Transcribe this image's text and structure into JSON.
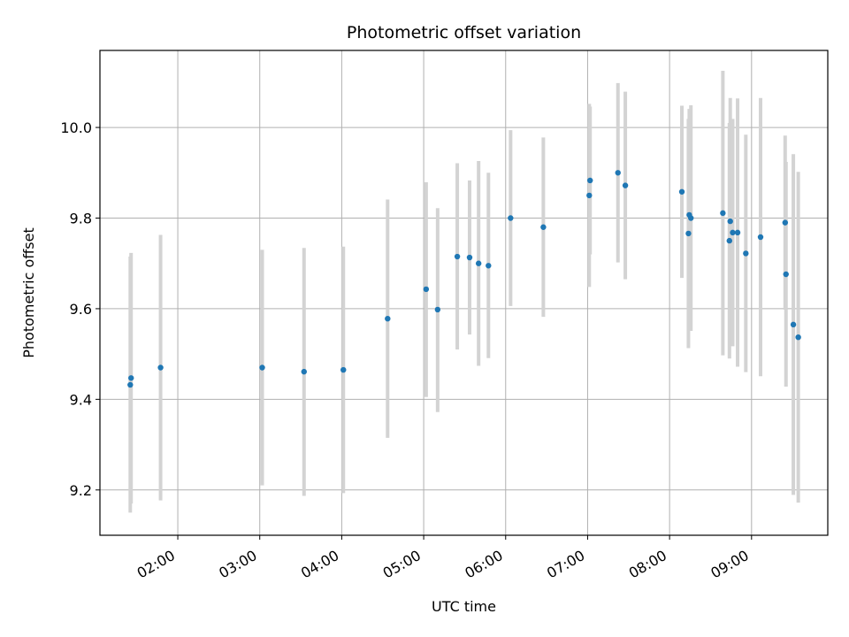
{
  "chart_data": {
    "type": "scatter",
    "title": "Photometric offset variation",
    "xlabel": "UTC time",
    "ylabel": "Photometric offset",
    "x_unit": "hours UTC",
    "xlim": [
      1.05,
      9.93
    ],
    "ylim": [
      9.1,
      10.17
    ],
    "xticks": [
      {
        "value": 2,
        "label": "02:00"
      },
      {
        "value": 3,
        "label": "03:00"
      },
      {
        "value": 4,
        "label": "04:00"
      },
      {
        "value": 5,
        "label": "05:00"
      },
      {
        "value": 6,
        "label": "06:00"
      },
      {
        "value": 7,
        "label": "07:00"
      },
      {
        "value": 8,
        "label": "08:00"
      },
      {
        "value": 9,
        "label": "09:00"
      }
    ],
    "yticks": [
      {
        "value": 9.2,
        "label": "9.2"
      },
      {
        "value": 9.4,
        "label": "9.4"
      },
      {
        "value": 9.6,
        "label": "9.6"
      },
      {
        "value": 9.8,
        "label": "9.8"
      },
      {
        "value": 10.0,
        "label": "10.0"
      }
    ],
    "grid": true,
    "marker_color": "#1f77b4",
    "errorbar_color": "#d3d3d3",
    "points": [
      {
        "x": 1.43,
        "y": 9.447,
        "lo": 9.17,
        "hi": 9.723
      },
      {
        "x": 1.42,
        "y": 9.432,
        "lo": 9.15,
        "hi": 9.715
      },
      {
        "x": 1.79,
        "y": 9.47,
        "lo": 9.177,
        "hi": 9.763
      },
      {
        "x": 3.03,
        "y": 9.47,
        "lo": 9.21,
        "hi": 9.73
      },
      {
        "x": 3.54,
        "y": 9.461,
        "lo": 9.187,
        "hi": 9.734
      },
      {
        "x": 4.02,
        "y": 9.465,
        "lo": 9.193,
        "hi": 9.737
      },
      {
        "x": 4.56,
        "y": 9.578,
        "lo": 9.315,
        "hi": 9.841
      },
      {
        "x": 5.03,
        "y": 9.643,
        "lo": 9.405,
        "hi": 9.879
      },
      {
        "x": 5.17,
        "y": 9.598,
        "lo": 9.372,
        "hi": 9.822
      },
      {
        "x": 5.41,
        "y": 9.715,
        "lo": 9.51,
        "hi": 9.921
      },
      {
        "x": 5.56,
        "y": 9.713,
        "lo": 9.543,
        "hi": 9.883
      },
      {
        "x": 5.67,
        "y": 9.7,
        "lo": 9.474,
        "hi": 9.926
      },
      {
        "x": 5.79,
        "y": 9.695,
        "lo": 9.491,
        "hi": 9.9
      },
      {
        "x": 6.06,
        "y": 9.8,
        "lo": 9.606,
        "hi": 9.994
      },
      {
        "x": 6.46,
        "y": 9.78,
        "lo": 9.582,
        "hi": 9.978
      },
      {
        "x": 7.02,
        "y": 9.85,
        "lo": 9.648,
        "hi": 10.052
      },
      {
        "x": 7.03,
        "y": 9.883,
        "lo": 9.72,
        "hi": 10.046
      },
      {
        "x": 7.37,
        "y": 9.9,
        "lo": 9.702,
        "hi": 10.098
      },
      {
        "x": 7.46,
        "y": 9.872,
        "lo": 9.665,
        "hi": 10.079
      },
      {
        "x": 8.15,
        "y": 9.858,
        "lo": 9.668,
        "hi": 10.048
      },
      {
        "x": 8.23,
        "y": 9.766,
        "lo": 9.513,
        "hi": 10.019
      },
      {
        "x": 8.24,
        "y": 9.807,
        "lo": 9.573,
        "hi": 10.041
      },
      {
        "x": 8.26,
        "y": 9.8,
        "lo": 9.551,
        "hi": 10.049
      },
      {
        "x": 8.65,
        "y": 9.811,
        "lo": 9.497,
        "hi": 10.125
      },
      {
        "x": 8.73,
        "y": 9.75,
        "lo": 9.49,
        "hi": 10.01
      },
      {
        "x": 8.74,
        "y": 9.793,
        "lo": 9.521,
        "hi": 10.065
      },
      {
        "x": 8.77,
        "y": 9.768,
        "lo": 9.517,
        "hi": 10.019
      },
      {
        "x": 8.83,
        "y": 9.768,
        "lo": 9.472,
        "hi": 10.064
      },
      {
        "x": 8.93,
        "y": 9.722,
        "lo": 9.46,
        "hi": 9.984
      },
      {
        "x": 9.11,
        "y": 9.758,
        "lo": 9.451,
        "hi": 10.065
      },
      {
        "x": 9.41,
        "y": 9.79,
        "lo": 9.598,
        "hi": 9.982
      },
      {
        "x": 9.42,
        "y": 9.676,
        "lo": 9.428,
        "hi": 9.924
      },
      {
        "x": 9.51,
        "y": 9.565,
        "lo": 9.189,
        "hi": 9.941
      },
      {
        "x": 9.57,
        "y": 9.537,
        "lo": 9.172,
        "hi": 9.902
      }
    ]
  }
}
